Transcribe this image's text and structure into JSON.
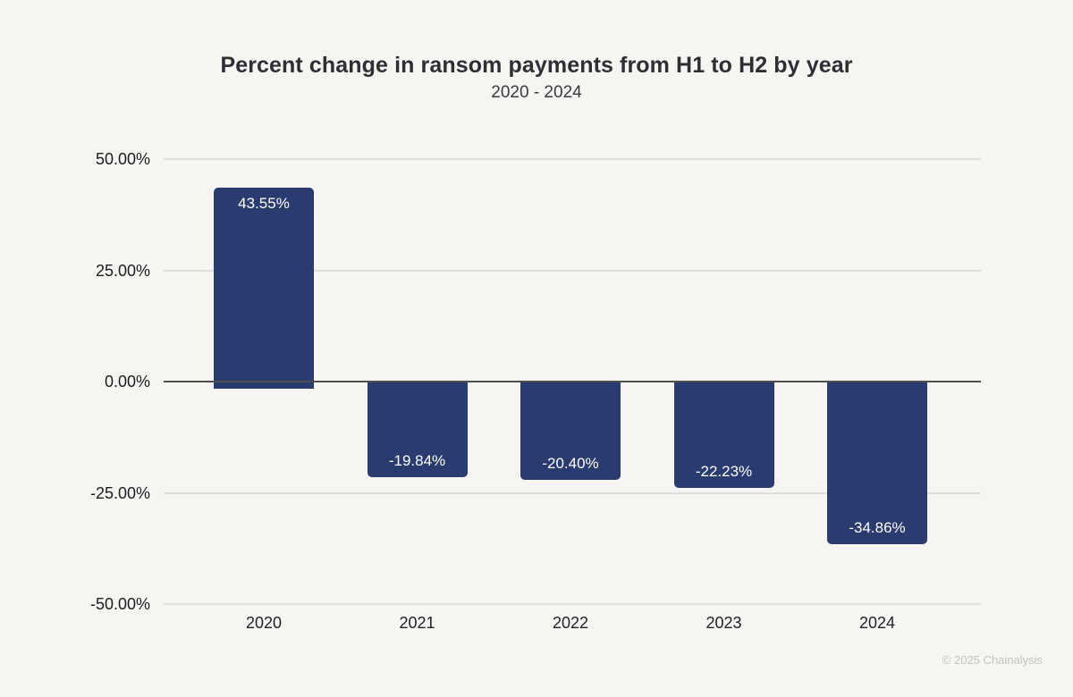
{
  "chart_data": {
    "type": "bar",
    "title": "Percent change in ransom payments from H1 to H2 by year",
    "subtitle": "2020 - 2024",
    "categories": [
      "2020",
      "2021",
      "2022",
      "2023",
      "2024"
    ],
    "values": [
      43.55,
      -19.84,
      -20.4,
      -22.23,
      -34.86
    ],
    "value_labels": [
      "43.55%",
      "-19.84%",
      "-20.40%",
      "-22.23%",
      "-34.86%"
    ],
    "xlabel": "",
    "ylabel": "",
    "ylim": [
      -50,
      50
    ],
    "yticks": [
      {
        "value": 50,
        "label": "50.00%"
      },
      {
        "value": 25,
        "label": "25.00%"
      },
      {
        "value": 0,
        "label": "0.00%"
      },
      {
        "value": -25,
        "label": "-25.00%"
      },
      {
        "value": -50,
        "label": "-50.00%"
      }
    ],
    "grid": "horizontal",
    "legend": "none",
    "colors": {
      "bar": "#2a3b70",
      "bar_label": "#ffffff",
      "background": "#f6f5f2",
      "zero_line": "#4f4f52",
      "gridline": "#e0dfdc"
    }
  },
  "footer": {
    "copyright": "© 2025 Chainalysis"
  }
}
